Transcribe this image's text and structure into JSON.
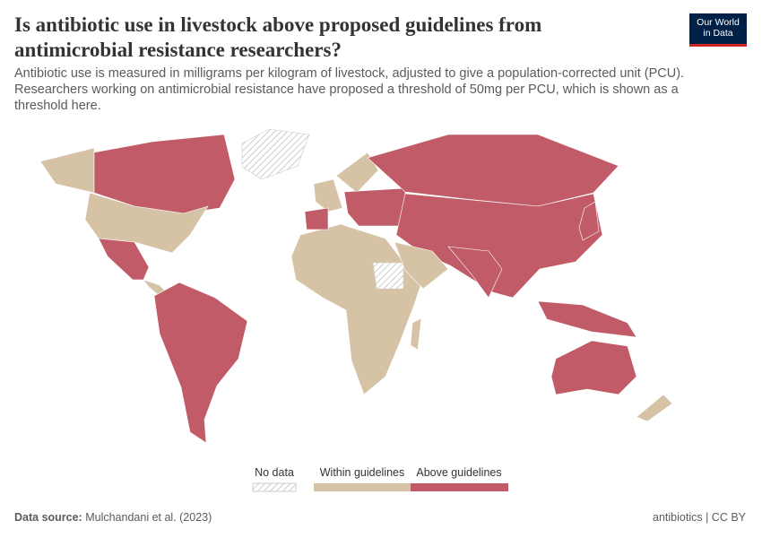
{
  "header": {
    "title": "Is antibiotic use in livestock above proposed guidelines from antimicrobial resistance researchers?",
    "subtitle": "Antibiotic use is measured in milligrams per kilogram of livestock, adjusted to give a population-corrected unit (PCU). Researchers working on antimicrobial resistance have proposed a threshold of 50mg per PCU, which is shown as a threshold here.",
    "logo": [
      "Our World",
      "in Data"
    ]
  },
  "legend": {
    "items": [
      "No data",
      "Within guidelines",
      "Above guidelines"
    ]
  },
  "footer": {
    "source_label": "Data source:",
    "source": "Mulchandani et al. (2023)",
    "license": "antibiotics | CC BY"
  }
}
